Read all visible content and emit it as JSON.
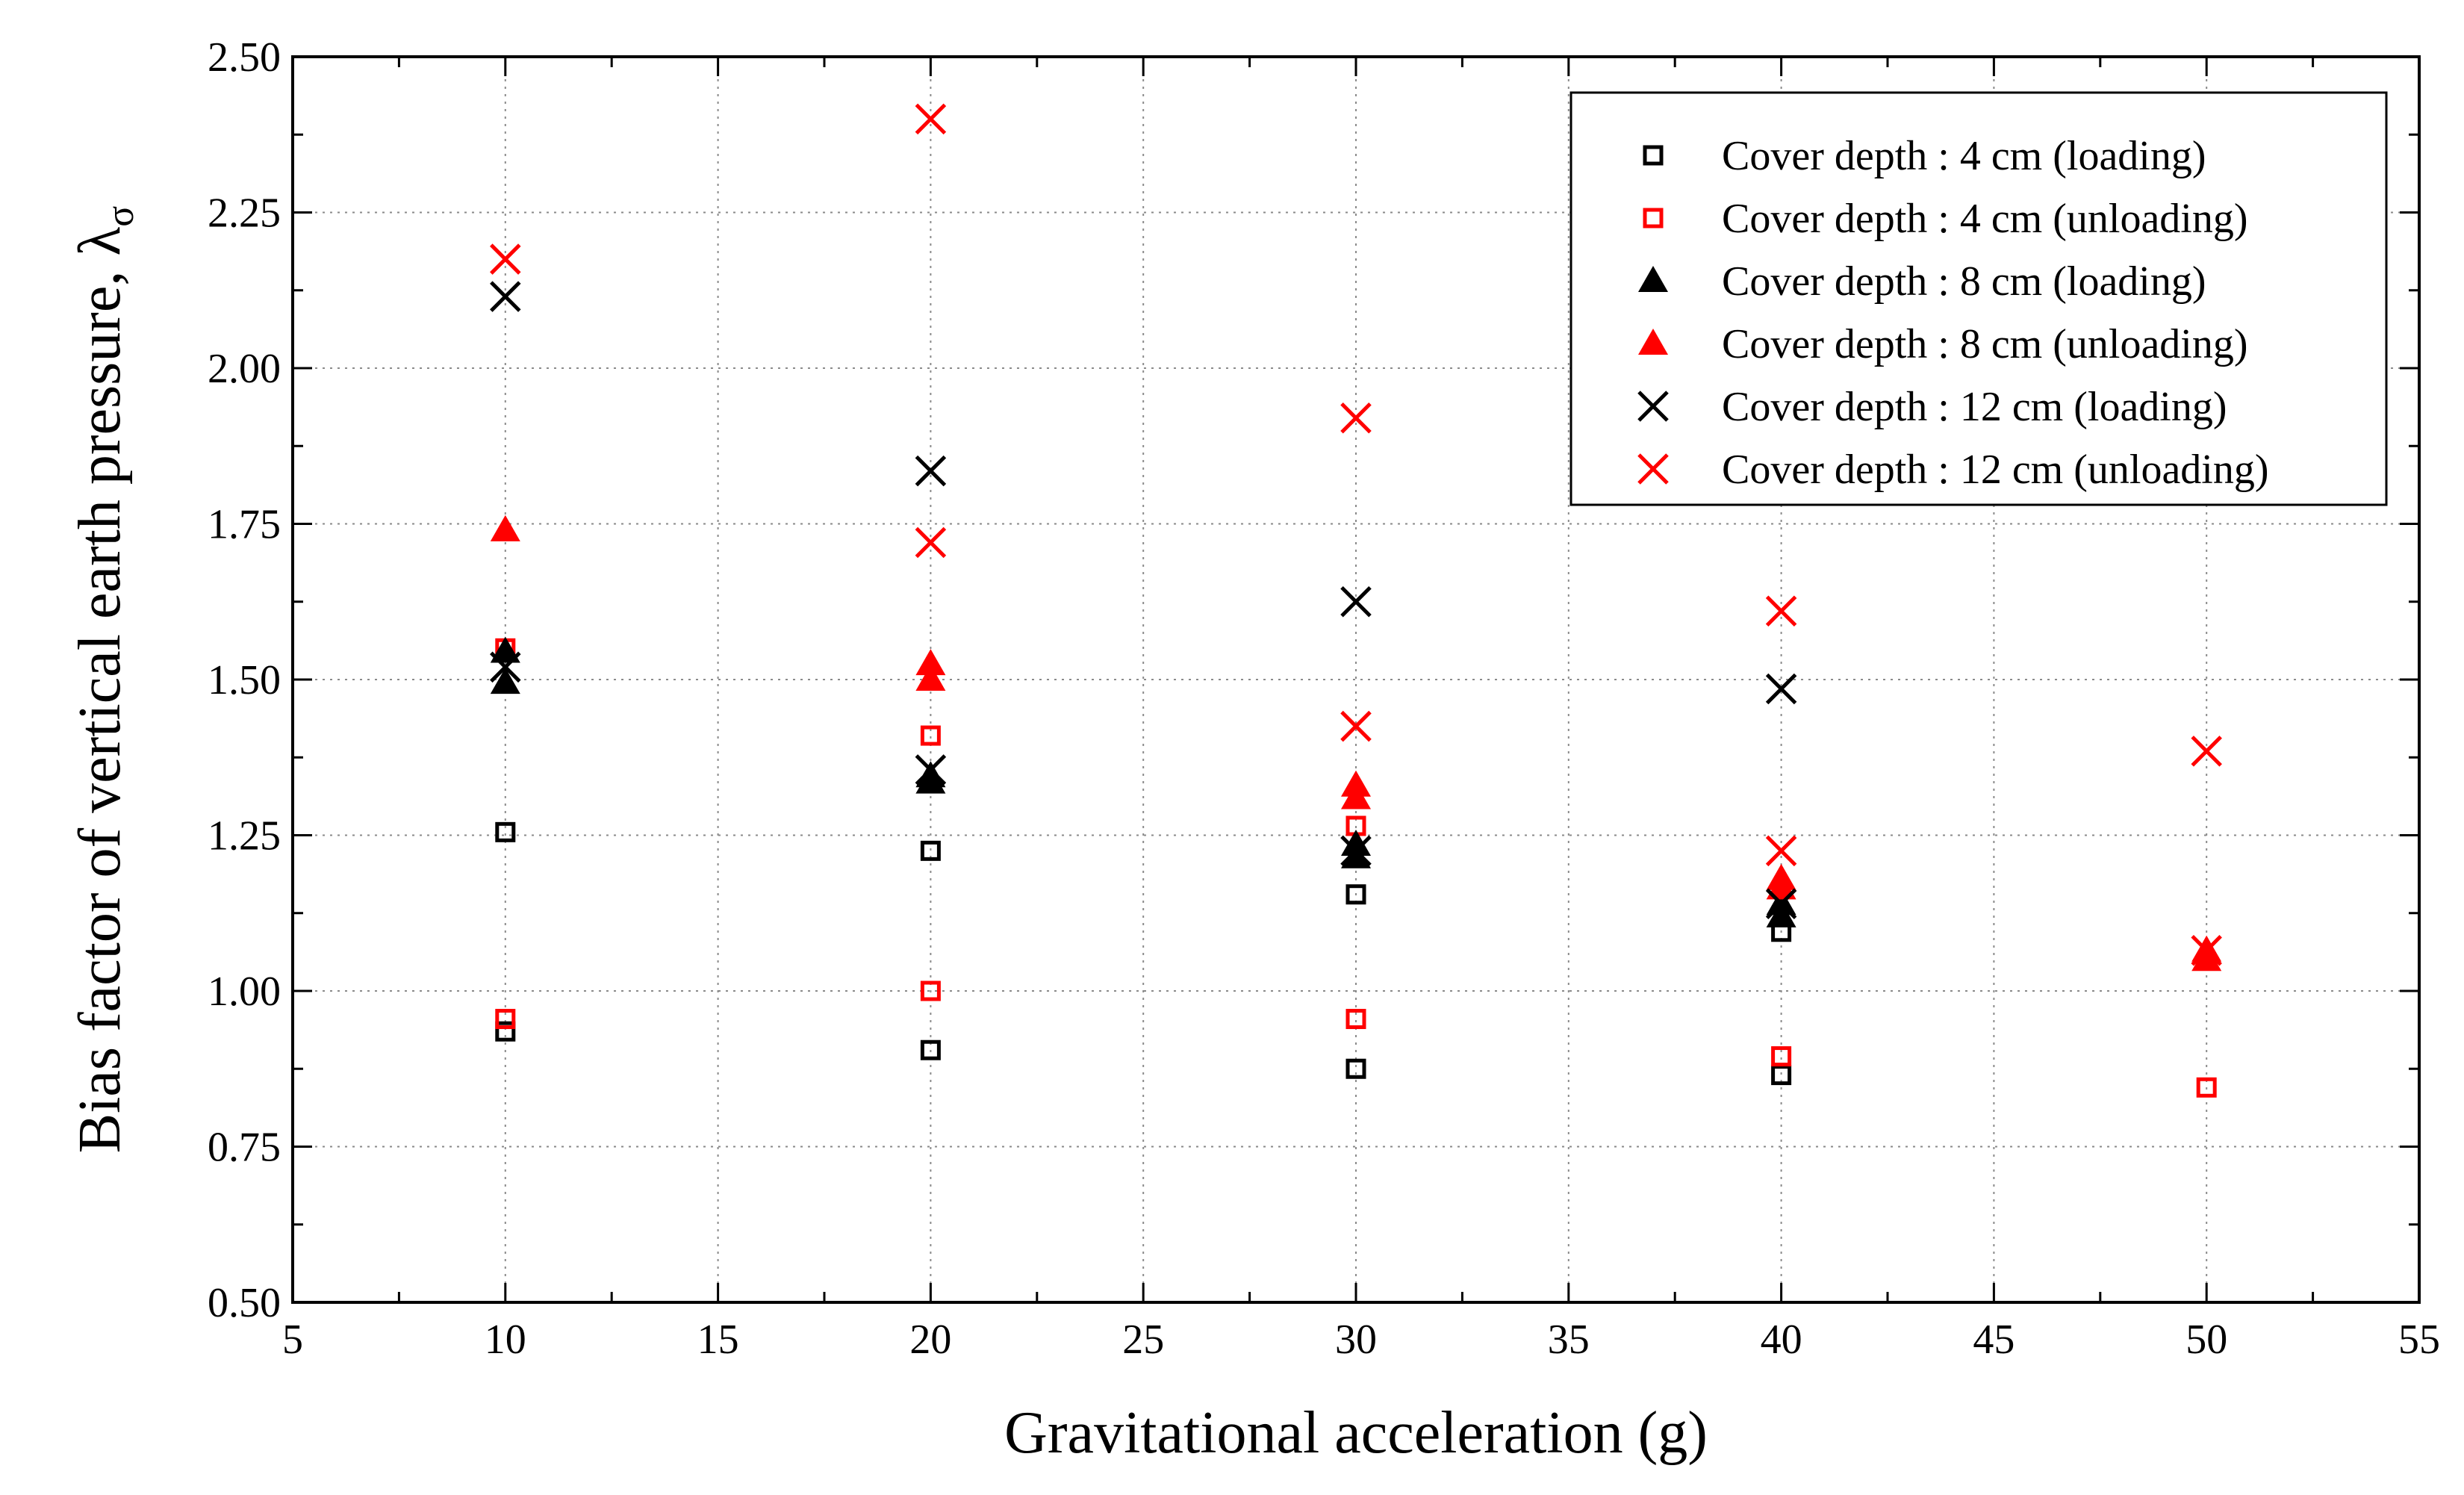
{
  "chart_data": {
    "type": "scatter",
    "title": "",
    "xlabel": "Gravitational acceleration (g)",
    "ylabel": "Bias factor of vertical earth pressure, λ",
    "ylabel_subscript": "σ",
    "xlim": [
      5,
      55
    ],
    "ylim": [
      0.5,
      2.5
    ],
    "xticks": [
      "5",
      "10",
      "15",
      "20",
      "25",
      "30",
      "35",
      "40",
      "45",
      "50",
      "55"
    ],
    "yticks": [
      "0.50",
      "0.75",
      "1.00",
      "1.25",
      "1.50",
      "1.75",
      "2.00",
      "2.25",
      "2.50"
    ],
    "grid": true,
    "legend_position": "top-right",
    "colors": {
      "loading": "#000000",
      "unloading": "#ff0000"
    },
    "series": [
      {
        "name": "Cover depth : 4 cm (loading)",
        "marker": "square",
        "color": "#000000",
        "x": [
          10,
          10,
          20,
          20,
          30,
          30,
          40,
          40
        ],
        "y": [
          1.255,
          0.935,
          1.225,
          0.905,
          1.155,
          0.875,
          1.095,
          0.865
        ]
      },
      {
        "name": "Cover depth : 4 cm (unloading)",
        "marker": "square",
        "color": "#ff0000",
        "x": [
          10,
          10,
          20,
          20,
          30,
          30,
          40,
          50
        ],
        "y": [
          1.55,
          0.955,
          1.41,
          1.0,
          1.265,
          0.955,
          0.895,
          0.845
        ]
      },
      {
        "name": "Cover depth : 8 cm (loading)",
        "marker": "triangle",
        "color": "#000000",
        "x": [
          10,
          10,
          20,
          20,
          30,
          30,
          40,
          40
        ],
        "y": [
          1.545,
          1.495,
          1.345,
          1.335,
          1.235,
          1.215,
          1.14,
          1.12
        ]
      },
      {
        "name": "Cover depth : 8 cm (unloading)",
        "marker": "triangle",
        "color": "#ff0000",
        "x": [
          10,
          20,
          20,
          30,
          30,
          40,
          40,
          50,
          50
        ],
        "y": [
          1.74,
          1.525,
          1.5,
          1.33,
          1.31,
          1.18,
          1.165,
          1.065,
          1.05
        ]
      },
      {
        "name": "Cover depth : 12 cm (loading)",
        "marker": "x",
        "color": "#000000",
        "x": [
          10,
          10,
          20,
          20,
          30,
          30,
          40,
          40
        ],
        "y": [
          2.115,
          1.52,
          1.835,
          1.355,
          1.625,
          1.225,
          1.485,
          1.14
        ]
      },
      {
        "name": "Cover depth : 12 cm (unloading)",
        "marker": "x",
        "color": "#ff0000",
        "x": [
          10,
          20,
          20,
          30,
          30,
          40,
          40,
          50,
          50
        ],
        "y": [
          2.175,
          2.4,
          1.72,
          1.92,
          1.425,
          1.61,
          1.225,
          1.385,
          1.065
        ]
      }
    ]
  }
}
